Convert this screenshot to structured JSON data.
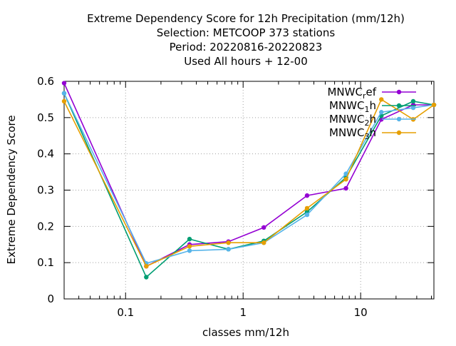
{
  "chart_data": {
    "type": "line",
    "title_lines": [
      "Extreme Dependency Score  for 12h Precipitation (mm/12h)",
      "Selection: METCOOP    373 stations",
      "Period: 20220816-20220823",
      "Used  All hours  + 12-00"
    ],
    "xlabel": "classes mm/12h",
    "ylabel": "Extreme Dependency Score",
    "x_scale": "log",
    "xlim": [
      0.03,
      42
    ],
    "ylim": [
      0,
      0.6
    ],
    "x_ticks": [
      0.1,
      1,
      10
    ],
    "x_tick_labels": [
      "0.1",
      "1",
      "10"
    ],
    "y_ticks": [
      0,
      0.1,
      0.2,
      0.3,
      0.4,
      0.5,
      0.6
    ],
    "y_tick_labels": [
      "0",
      "0.1",
      "0.2",
      "0.3",
      "0.4",
      "0.5",
      "0.6"
    ],
    "grid": true,
    "legend_position": "top-right",
    "x": [
      0.03,
      0.15,
      0.35,
      0.75,
      1.5,
      3.5,
      7.5,
      15,
      28,
      42
    ],
    "series": [
      {
        "name": "MNWC_ref",
        "legend": {
          "base": "MNWC",
          "sub": "r",
          "suffix": "ef"
        },
        "color": "#9400d3",
        "values": [
          0.595,
          0.09,
          0.15,
          0.158,
          0.197,
          0.285,
          0.305,
          0.495,
          0.535,
          0.535
        ]
      },
      {
        "name": "MNWC_1h",
        "legend": {
          "base": "MNWC",
          "sub": "1",
          "suffix": "h"
        },
        "color": "#009e73",
        "values": [
          0.567,
          0.06,
          0.165,
          0.137,
          0.16,
          0.24,
          0.335,
          0.505,
          0.545,
          0.535
        ]
      },
      {
        "name": "MNWC_2h",
        "legend": {
          "base": "MNWC",
          "sub": "2",
          "suffix": "h"
        },
        "color": "#56b4e9",
        "values": [
          0.567,
          0.098,
          0.133,
          0.137,
          0.155,
          0.232,
          0.345,
          0.515,
          0.527,
          0.535
        ]
      },
      {
        "name": "MNWC_3h",
        "legend": {
          "base": "MNWC",
          "sub": "3",
          "suffix": "h"
        },
        "color": "#e69f00",
        "values": [
          0.545,
          0.09,
          0.145,
          0.155,
          0.155,
          0.25,
          0.33,
          0.55,
          0.495,
          0.535
        ]
      }
    ]
  }
}
